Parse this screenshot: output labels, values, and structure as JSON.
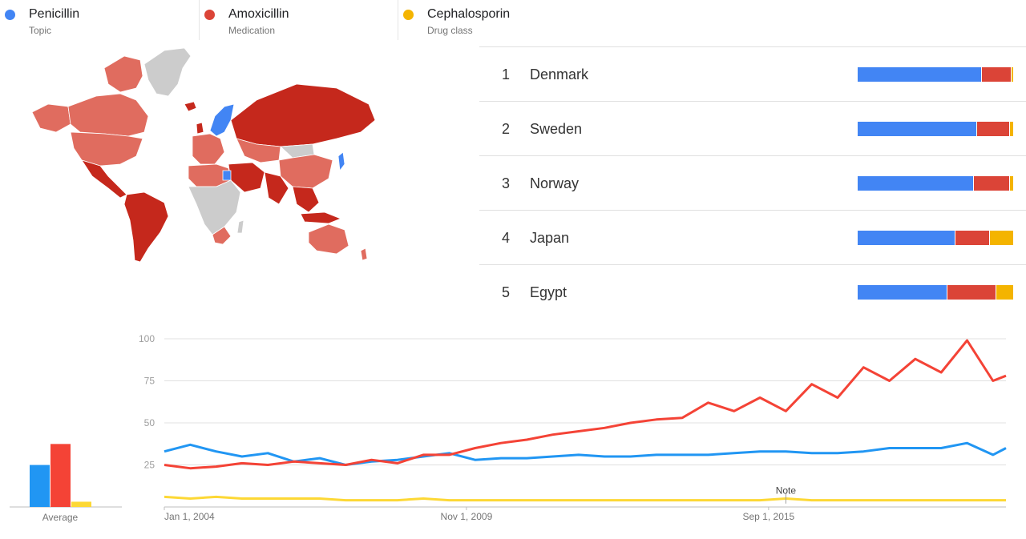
{
  "legend": [
    {
      "name": "Penicillin",
      "sub": "Topic",
      "color": "#4285f4"
    },
    {
      "name": "Amoxicillin",
      "sub": "Medication",
      "color": "#db4437"
    },
    {
      "name": "Cephalosporin",
      "sub": "Drug class",
      "color": "#f4b400"
    }
  ],
  "map": {
    "description_colors": {
      "penicillin": "#4285f4",
      "amoxicillin_dark": "#c5281c",
      "amoxicillin_light": "#e06c5f",
      "no_data": "#cccccc"
    }
  },
  "ranking": [
    {
      "rank": "1",
      "country": "Denmark",
      "shares": [
        80,
        19,
        1
      ]
    },
    {
      "rank": "2",
      "country": "Sweden",
      "shares": [
        77,
        21,
        2
      ]
    },
    {
      "rank": "3",
      "country": "Norway",
      "shares": [
        75,
        23,
        2
      ]
    },
    {
      "rank": "4",
      "country": "Japan",
      "shares": [
        63,
        22,
        15
      ]
    },
    {
      "rank": "5",
      "country": "Egypt",
      "shares": [
        58,
        31,
        11
      ]
    }
  ],
  "average": {
    "label": "Average",
    "values": [
      32,
      48,
      4
    ]
  },
  "chart_data": {
    "type": "line",
    "x_ticks": [
      "Jan 1, 2004",
      "Nov 1, 2009",
      "Sep 1, 2015"
    ],
    "y_ticks": [
      25,
      50,
      75,
      100
    ],
    "ylim": [
      0,
      100
    ],
    "xlim": [
      2004.0,
      2020.25
    ],
    "note_label": "Note",
    "note_x": 2016.0,
    "legend_position": "top",
    "series": [
      {
        "name": "Penicillin",
        "color": "#2196f3",
        "x": [
          2004.0,
          2004.5,
          2005.0,
          2005.5,
          2006.0,
          2006.5,
          2007.0,
          2007.5,
          2008.0,
          2008.5,
          2009.0,
          2009.5,
          2010.0,
          2010.5,
          2011.0,
          2011.5,
          2012.0,
          2012.5,
          2013.0,
          2013.5,
          2014.0,
          2014.5,
          2015.0,
          2015.5,
          2016.0,
          2016.5,
          2017.0,
          2017.5,
          2018.0,
          2018.5,
          2019.0,
          2019.5,
          2020.0,
          2020.25
        ],
        "y": [
          33,
          37,
          33,
          30,
          32,
          27,
          29,
          25,
          27,
          28,
          30,
          32,
          28,
          29,
          29,
          30,
          31,
          30,
          30,
          31,
          31,
          31,
          32,
          33,
          33,
          32,
          32,
          33,
          35,
          35,
          35,
          38,
          31,
          35
        ]
      },
      {
        "name": "Amoxicillin",
        "color": "#f44336",
        "x": [
          2004.0,
          2004.5,
          2005.0,
          2005.5,
          2006.0,
          2006.5,
          2007.0,
          2007.5,
          2008.0,
          2008.5,
          2009.0,
          2009.5,
          2010.0,
          2010.5,
          2011.0,
          2011.5,
          2012.0,
          2012.5,
          2013.0,
          2013.5,
          2014.0,
          2014.5,
          2015.0,
          2015.5,
          2016.0,
          2016.5,
          2017.0,
          2017.5,
          2018.0,
          2018.5,
          2019.0,
          2019.5,
          2020.0,
          2020.25
        ],
        "y": [
          25,
          23,
          24,
          26,
          25,
          27,
          26,
          25,
          28,
          26,
          31,
          31,
          35,
          38,
          40,
          43,
          45,
          47,
          50,
          52,
          53,
          62,
          57,
          65,
          57,
          73,
          65,
          83,
          75,
          88,
          80,
          99,
          75,
          78
        ]
      },
      {
        "name": "Cephalosporin",
        "color": "#fdd835",
        "x": [
          2004.0,
          2004.5,
          2005.0,
          2005.5,
          2006.0,
          2006.5,
          2007.0,
          2007.5,
          2008.0,
          2008.5,
          2009.0,
          2009.5,
          2010.0,
          2010.5,
          2011.0,
          2011.5,
          2012.0,
          2012.5,
          2013.0,
          2013.5,
          2014.0,
          2014.5,
          2015.0,
          2015.5,
          2016.0,
          2016.5,
          2017.0,
          2017.5,
          2018.0,
          2018.5,
          2019.0,
          2019.5,
          2020.0,
          2020.25
        ],
        "y": [
          6,
          5,
          6,
          5,
          5,
          5,
          5,
          4,
          4,
          4,
          5,
          4,
          4,
          4,
          4,
          4,
          4,
          4,
          4,
          4,
          4,
          4,
          4,
          4,
          5,
          4,
          4,
          4,
          4,
          4,
          4,
          4,
          4,
          4
        ]
      }
    ]
  }
}
